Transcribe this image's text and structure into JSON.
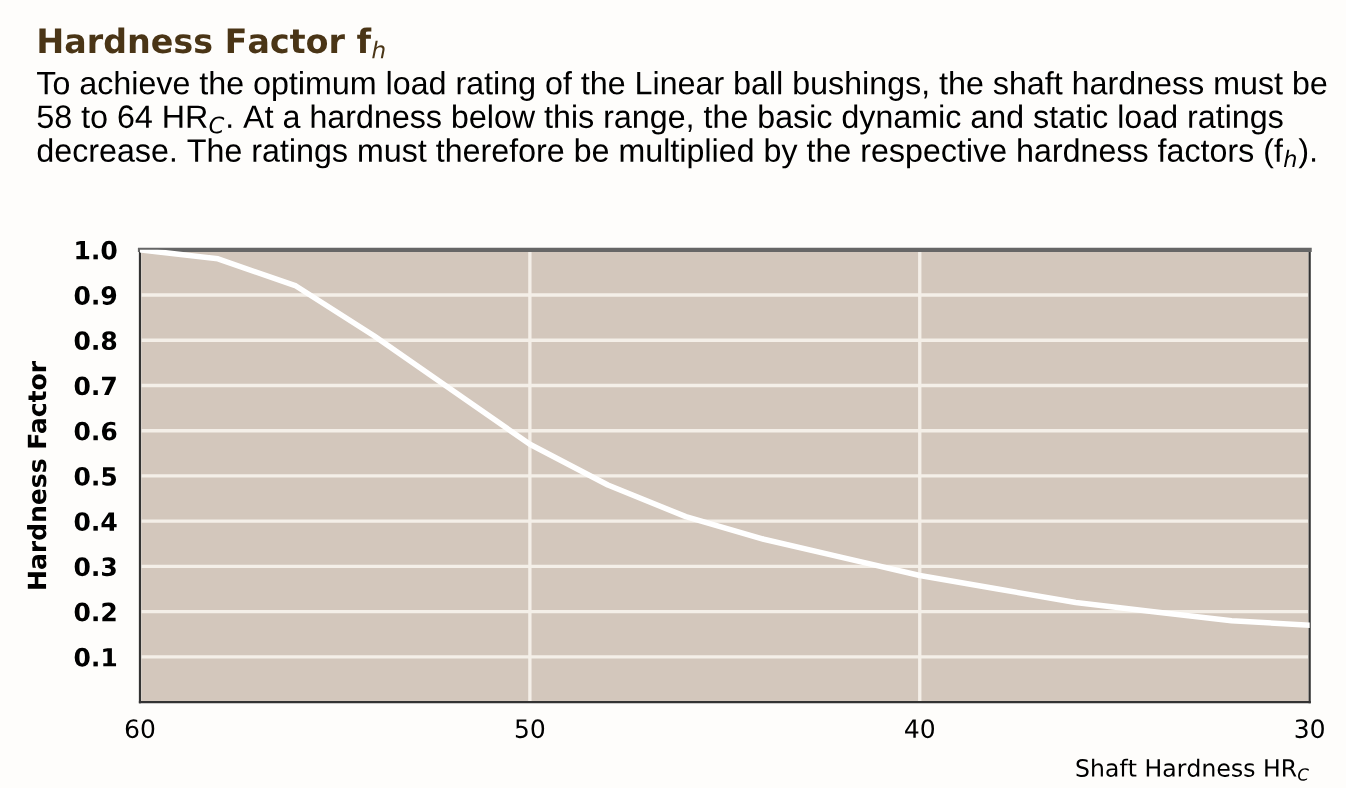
{
  "chart_data": {
    "type": "line",
    "title": "Hardness Factor f$_{h}$",
    "subtitle": "To achieve the optimum load rating of the Linear ball bushings, the shaft hardness must be 58 to 64 HR$_{C}$. At a hardness below this range, the basic dynamic and static load ratings decrease. The ratings must therefore be multiplied by the respective hardness factors (f$_{h}$).",
    "xlabel": "Shaft Hardness HR$_{C}$",
    "ylabel": "Hardness Factor",
    "x": [
      60,
      58,
      56,
      54,
      52,
      50,
      48,
      46,
      44,
      42,
      40,
      38,
      36,
      34,
      32,
      30
    ],
    "series": [
      {
        "color": "#ffffff",
        "values": [
          1.0,
          0.98,
          0.92,
          0.81,
          0.69,
          0.57,
          0.48,
          0.41,
          0.36,
          0.32,
          0.28,
          0.25,
          0.22,
          0.2,
          0.18,
          0.17
        ]
      }
    ],
    "xlim": [
      60,
      30
    ],
    "xticks": [
      60,
      50,
      40,
      30
    ],
    "ylim": [
      0,
      1.0
    ],
    "yticks": [
      0.1,
      0.2,
      0.3,
      0.4,
      0.5,
      0.6,
      0.7,
      0.8,
      0.9,
      {
        "value": 1.0,
        "label": "1.0"
      }
    ],
    "grid": true,
    "marker": "none",
    "line_style": "solid"
  }
}
